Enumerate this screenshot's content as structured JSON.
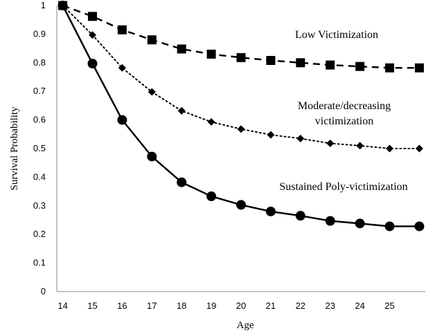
{
  "chart_data": {
    "type": "line",
    "title": "",
    "xlabel": "Age",
    "ylabel": "Survival Probability",
    "x": [
      14,
      15,
      16,
      17,
      18,
      19,
      20,
      21,
      22,
      23,
      24,
      25,
      26
    ],
    "x_tick_labels": [
      "14",
      "15",
      "16",
      "17",
      "18",
      "19",
      "20",
      "21",
      "22",
      "23",
      "24",
      "25"
    ],
    "y_tick_labels": [
      "0",
      "0.1",
      "0.2",
      "0.3",
      "0.4",
      "0.5",
      "0.6",
      "0.7",
      "0.8",
      "0.9",
      "1"
    ],
    "xlim": [
      13.8,
      26.2
    ],
    "ylim": [
      0,
      1
    ],
    "grid": false,
    "legend": "none; series labeled directly on the plot",
    "series": [
      {
        "name": "Low Victimization",
        "label_lines": [
          "Low Victimization"
        ],
        "values": [
          1.0,
          0.962,
          0.915,
          0.88,
          0.848,
          0.83,
          0.818,
          0.808,
          0.8,
          0.792,
          0.787,
          0.782,
          0.782
        ],
        "line_style": "dashed",
        "marker": "square",
        "color": "#000000"
      },
      {
        "name": "Moderate/decreasing victimization",
        "label_lines": [
          "Moderate/decreasing",
          "victimization"
        ],
        "values": [
          1.0,
          0.897,
          0.782,
          0.698,
          0.632,
          0.593,
          0.568,
          0.548,
          0.535,
          0.518,
          0.51,
          0.5,
          0.5
        ],
        "line_style": "dotted",
        "marker": "diamond",
        "color": "#000000"
      },
      {
        "name": "Sustained Poly-victimization",
        "label_lines": [
          "Sustained Poly-victimization"
        ],
        "values": [
          1.0,
          0.797,
          0.6,
          0.472,
          0.382,
          0.333,
          0.303,
          0.28,
          0.265,
          0.247,
          0.238,
          0.228,
          0.228
        ],
        "line_style": "solid",
        "marker": "circle",
        "color": "#000000"
      }
    ]
  }
}
